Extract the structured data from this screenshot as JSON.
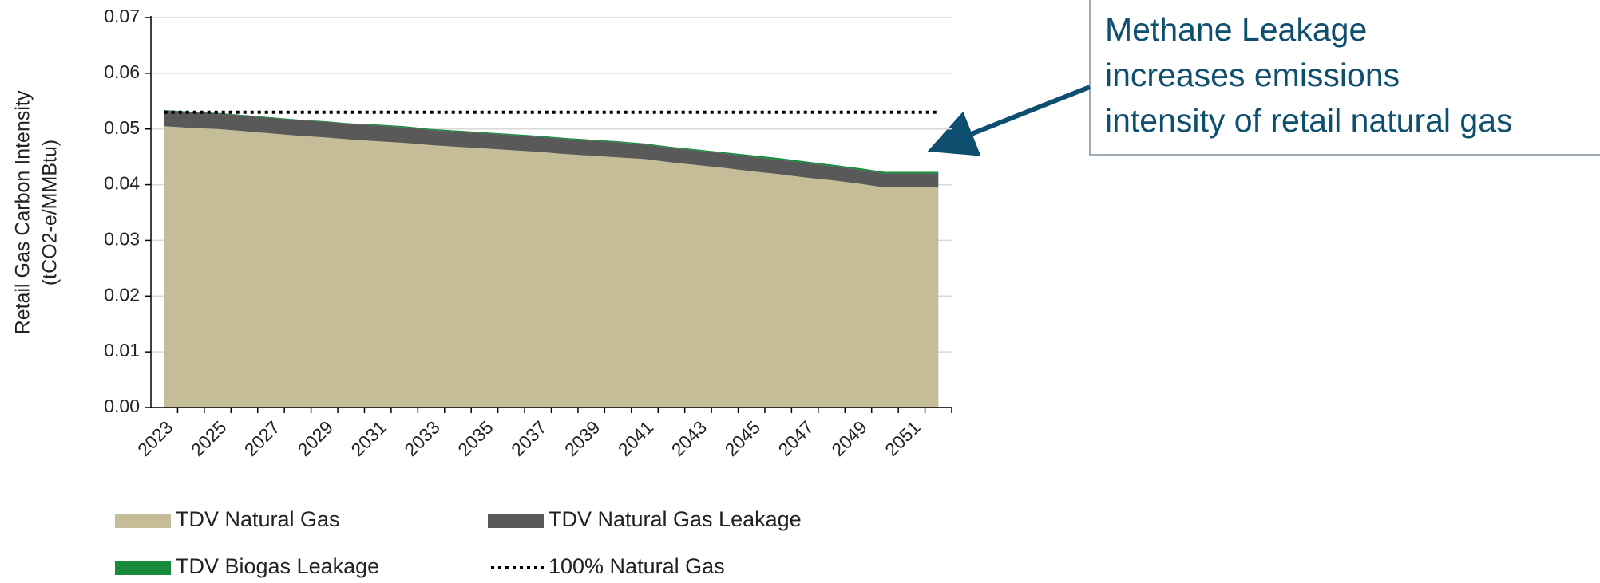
{
  "chart_data": {
    "type": "stacked_area",
    "ylabel": [
      "Retail Gas Carbon Intensity",
      "(tCO2-e/MMBtu)"
    ],
    "categories": [
      "2023",
      null,
      "2025",
      null,
      "2027",
      null,
      "2029",
      null,
      "2031",
      null,
      "2033",
      null,
      "2035",
      null,
      "2037",
      null,
      "2039",
      null,
      "2041",
      null,
      "2043",
      null,
      "2045",
      null,
      "2047",
      null,
      "2049",
      null,
      "2051",
      null
    ],
    "series": [
      {
        "name": "TDV Natural Gas",
        "color": "#c4bd97",
        "values": [
          0.0505,
          0.0502,
          0.05,
          0.0496,
          0.0492,
          0.0488,
          0.0485,
          0.0481,
          0.0478,
          0.0475,
          0.0471,
          0.0468,
          0.0465,
          0.0462,
          0.0459,
          0.0455,
          0.0452,
          0.0449,
          0.0446,
          0.044,
          0.0435,
          0.043,
          0.0424,
          0.0419,
          0.0413,
          0.0408,
          0.0402,
          0.0395,
          0.0395,
          0.0395
        ]
      },
      {
        "name": "TDV Natural Gas Leakage",
        "color": "#595959",
        "values": [
          0.0028,
          0.0028,
          0.0028,
          0.0028,
          0.0028,
          0.0028,
          0.0028,
          0.0028,
          0.0028,
          0.0028,
          0.0027,
          0.0027,
          0.0027,
          0.0027,
          0.0027,
          0.0027,
          0.0027,
          0.0027,
          0.0026,
          0.0026,
          0.0026,
          0.0026,
          0.0026,
          0.0026,
          0.0026,
          0.0025,
          0.0025,
          0.0025,
          0.0025,
          0.0025
        ]
      },
      {
        "name": "TDV Biogas Leakage",
        "color": "#188a3c",
        "values": [
          0.0001,
          0.0001,
          0.0001,
          0.0001,
          0.0001,
          0.0001,
          0.0001,
          0.0001,
          0.0002,
          0.0002,
          0.0002,
          0.0002,
          0.0002,
          0.0002,
          0.0002,
          0.0002,
          0.0002,
          0.0002,
          0.0002,
          0.0002,
          0.0002,
          0.0002,
          0.0003,
          0.0003,
          0.0003,
          0.0003,
          0.0003,
          0.0003,
          0.0003,
          0.0003
        ]
      }
    ],
    "line_series": {
      "name": "100% Natural Gas",
      "color": "#000000",
      "values": [
        0.053,
        0.053,
        0.053,
        0.053,
        0.053,
        0.053,
        0.053,
        0.053,
        0.053,
        0.053,
        0.053,
        0.053,
        0.053,
        0.053,
        0.053,
        0.053,
        0.053,
        0.053,
        0.053,
        0.053,
        0.053,
        0.053,
        0.053,
        0.053,
        0.053,
        0.053,
        0.053,
        0.053,
        0.053,
        0.053
      ]
    },
    "ylim": [
      0,
      0.07
    ],
    "yticks": [
      {
        "value": 0,
        "label": "0.00"
      },
      0.01,
      0.02,
      0.03,
      0.04,
      0.05,
      0.06,
      0.07
    ],
    "grid": true,
    "annotation": [
      "Methane Leakage",
      "increases emissions",
      "intensity of retail natural gas"
    ]
  }
}
